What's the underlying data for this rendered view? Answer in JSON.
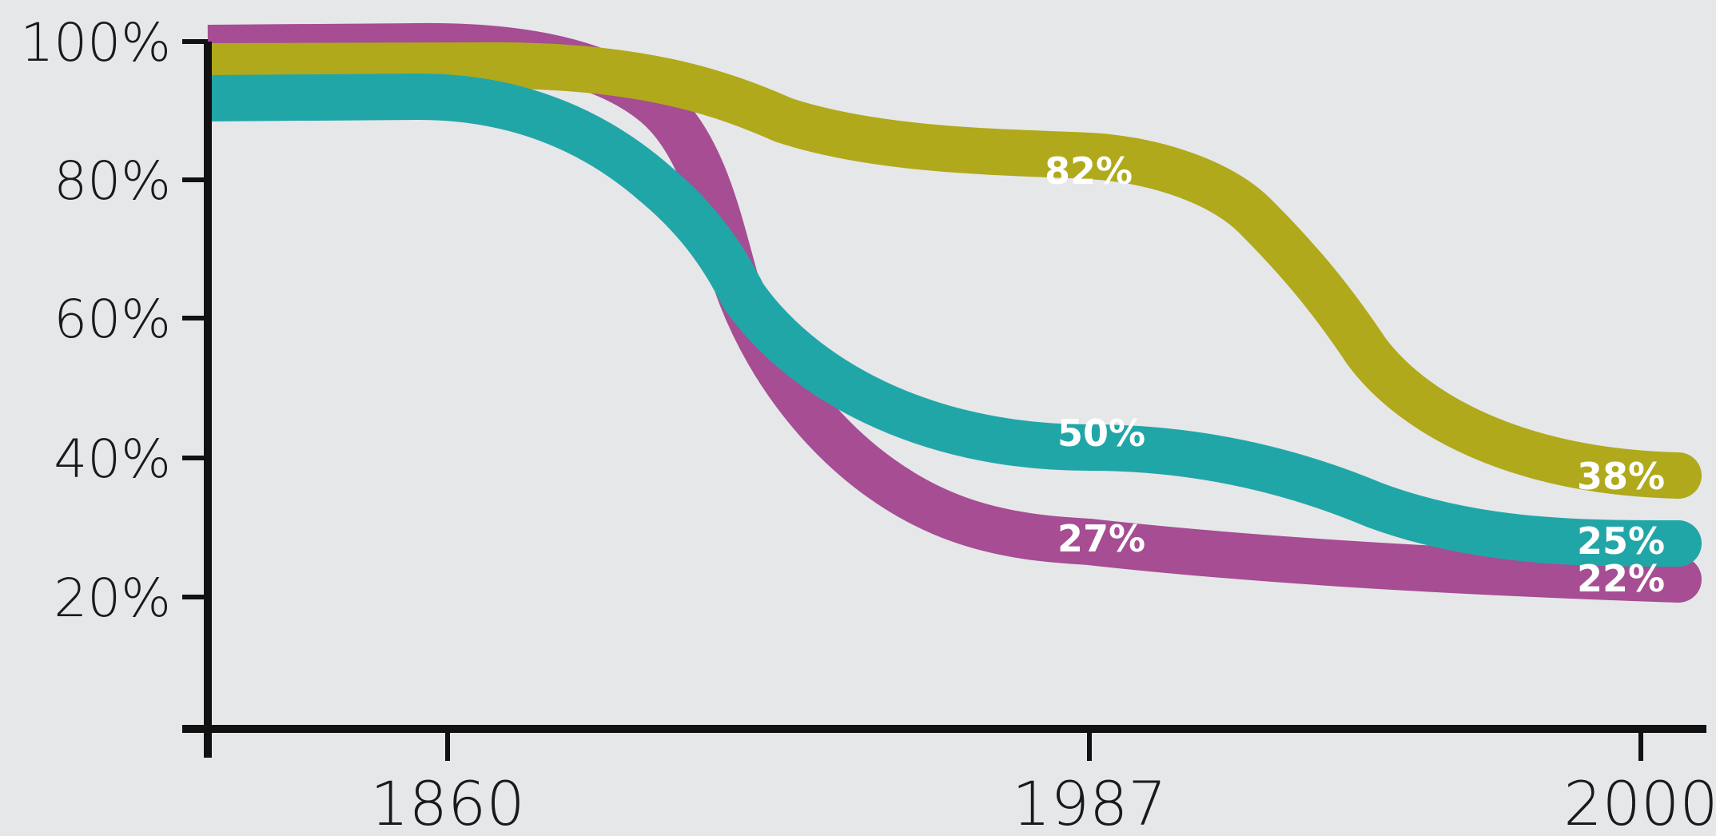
{
  "chart_data": {
    "type": "line",
    "title": "",
    "xlabel": "",
    "ylabel": "",
    "x_ticks": [
      "1860",
      "1987",
      "2000"
    ],
    "y_ticks": [
      "20%",
      "40%",
      "60%",
      "80%",
      "100%"
    ],
    "ylim": [
      0,
      100
    ],
    "grid": false,
    "legend": "none",
    "series": [
      {
        "color": "#a64d93",
        "points": [
          [
            "start",
            97
          ],
          [
            "1860",
            97
          ],
          [
            "mid",
            63
          ],
          [
            "1987",
            27
          ],
          [
            "2000",
            22
          ]
        ],
        "labels": [
          {
            "at": "1987",
            "text": "27%"
          },
          {
            "at": "2000",
            "text": "22%"
          }
        ]
      },
      {
        "color": "#21a6a8",
        "points": [
          [
            "start",
            92
          ],
          [
            "1860",
            92
          ],
          [
            "mid",
            68
          ],
          [
            "1987",
            50
          ],
          [
            "2000",
            25
          ]
        ],
        "labels": [
          {
            "at": "1987",
            "text": "50%"
          },
          {
            "at": "2000",
            "text": "25%"
          }
        ]
      },
      {
        "color": "#b0a91b",
        "points": [
          [
            "start",
            96
          ],
          [
            "1860",
            96
          ],
          [
            "1987",
            82
          ],
          [
            "2000",
            38
          ]
        ],
        "labels": [
          {
            "at": "1987",
            "text": "82%"
          },
          {
            "at": "2000",
            "text": "38%"
          }
        ]
      }
    ]
  }
}
